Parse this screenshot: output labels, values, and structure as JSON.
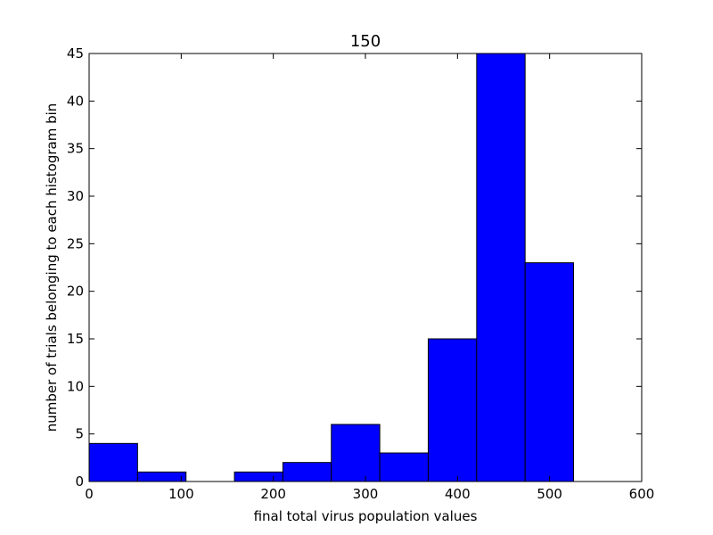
{
  "chart_data": {
    "type": "bar",
    "title": "150",
    "xlabel": "final total virus population values",
    "ylabel": "number of trials belonging to each histogram bin",
    "xlim": [
      0,
      600
    ],
    "ylim": [
      0,
      45
    ],
    "xticks": [
      0,
      100,
      200,
      300,
      400,
      500,
      600
    ],
    "yticks": [
      0,
      5,
      10,
      15,
      20,
      25,
      30,
      35,
      40,
      45
    ],
    "bins": [
      {
        "start": 0,
        "end": 52.6,
        "count": 4
      },
      {
        "start": 52.6,
        "end": 105.2,
        "count": 1
      },
      {
        "start": 105.2,
        "end": 157.8,
        "count": 0
      },
      {
        "start": 157.8,
        "end": 210.4,
        "count": 1
      },
      {
        "start": 210.4,
        "end": 263.0,
        "count": 2
      },
      {
        "start": 263.0,
        "end": 315.6,
        "count": 6
      },
      {
        "start": 315.6,
        "end": 368.2,
        "count": 3
      },
      {
        "start": 368.2,
        "end": 420.8,
        "count": 15
      },
      {
        "start": 420.8,
        "end": 473.4,
        "count": 45
      },
      {
        "start": 473.4,
        "end": 526.0,
        "count": 23
      }
    ],
    "bar_color": "#0000ff",
    "edge_color": "#000000",
    "grid": false,
    "legend": "none"
  }
}
